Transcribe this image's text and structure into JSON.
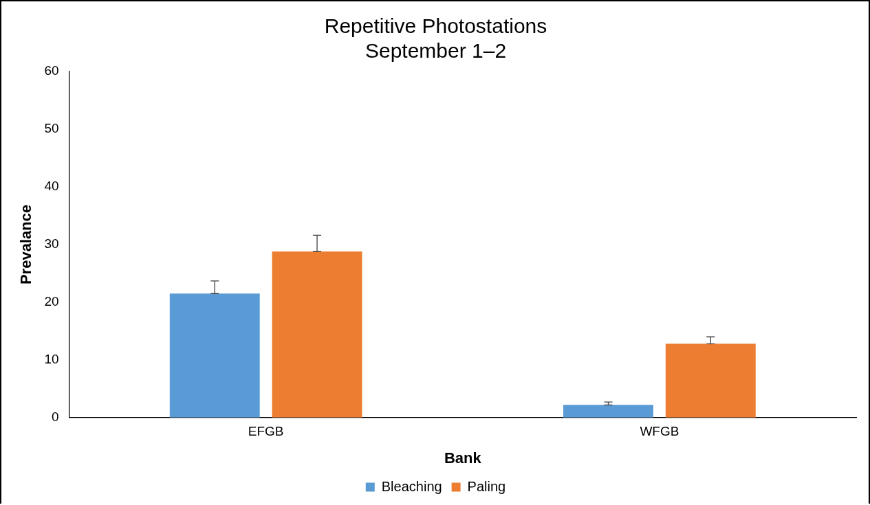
{
  "chart_data": {
    "type": "bar",
    "title": "Repetitive Photostations\nSeptember 1–2",
    "xlabel": "Bank",
    "ylabel": "Prevalance",
    "categories": [
      "EFGB",
      "WFGB"
    ],
    "series": [
      {
        "name": "Bleaching",
        "color": "#5b9bd5",
        "values": [
          21.5,
          2.2
        ],
        "errors": [
          [
            21.5,
            23.7
          ],
          [
            2.2,
            2.7
          ]
        ]
      },
      {
        "name": "Paling",
        "color": "#ed7d31",
        "values": [
          28.8,
          12.8
        ],
        "errors": [
          [
            28.8,
            31.6
          ],
          [
            12.8,
            14.0
          ]
        ]
      }
    ],
    "ylim": [
      0,
      60
    ],
    "yticks": [
      0,
      10,
      20,
      30,
      40,
      50,
      60
    ],
    "grid": false,
    "legend": "bottom"
  }
}
